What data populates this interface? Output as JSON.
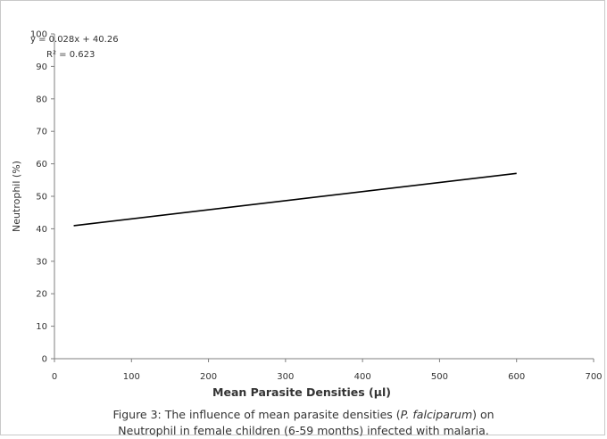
{
  "chart_data": {
    "type": "line",
    "title": "",
    "xlabel": "Mean Parasite Densities (µl)",
    "ylabel": "Neutrophil  (%)",
    "xlim": [
      0,
      700
    ],
    "ylim": [
      0,
      100
    ],
    "xticks": [
      "0",
      "100",
      "200",
      "300",
      "400",
      "500",
      "600",
      "700"
    ],
    "yticks": [
      "0",
      "10",
      "20",
      "30",
      "40",
      "50",
      "60",
      "70",
      "80",
      "90",
      "100"
    ],
    "series": [
      {
        "x": [
          25,
          600
        ],
        "y": [
          40.96,
          57.06
        ],
        "color": "#000000"
      }
    ],
    "annotations": {
      "equation": "y = 0.028x + 40.26",
      "r_squared": "R² = 0.623"
    },
    "grid": false,
    "legend": "none"
  },
  "caption": {
    "prefix": "Figure 3: The influence of mean parasite densities (",
    "italic": "P. falciparum",
    "suffix": ") on",
    "line2": "Neutrophil in female children (6-59 months) infected with malaria."
  }
}
